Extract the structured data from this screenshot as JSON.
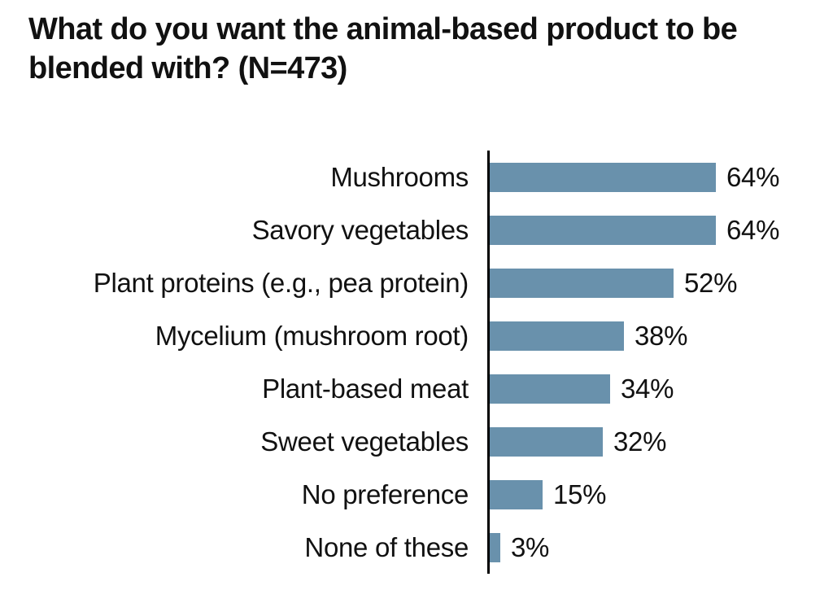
{
  "chart_data": {
    "type": "bar",
    "orientation": "horizontal",
    "title": "What do you want the animal-based product to be blended with? (N=473)",
    "title_lines": [
      "What do you want the animal-based product to be",
      "blended with? (N=473)"
    ],
    "categories": [
      "Mushrooms",
      "Savory vegetables",
      "Plant proteins (e.g., pea protein)",
      "Mycelium (mushroom root)",
      "Plant-based meat",
      "Sweet vegetables",
      "No preference",
      "None of these"
    ],
    "values": [
      64,
      64,
      52,
      38,
      34,
      32,
      15,
      3
    ],
    "value_labels": [
      "64%",
      "64%",
      "52%",
      "38%",
      "34%",
      "32%",
      "15%",
      "3%"
    ],
    "unit": "%",
    "xlim": [
      0,
      100
    ],
    "bar_color": "#6991AC",
    "axis_color": "#000000",
    "text_color": "#111111",
    "background_color": "#FFFFFF",
    "grid": false,
    "legend": false,
    "data_labels_position": "outside-end"
  }
}
